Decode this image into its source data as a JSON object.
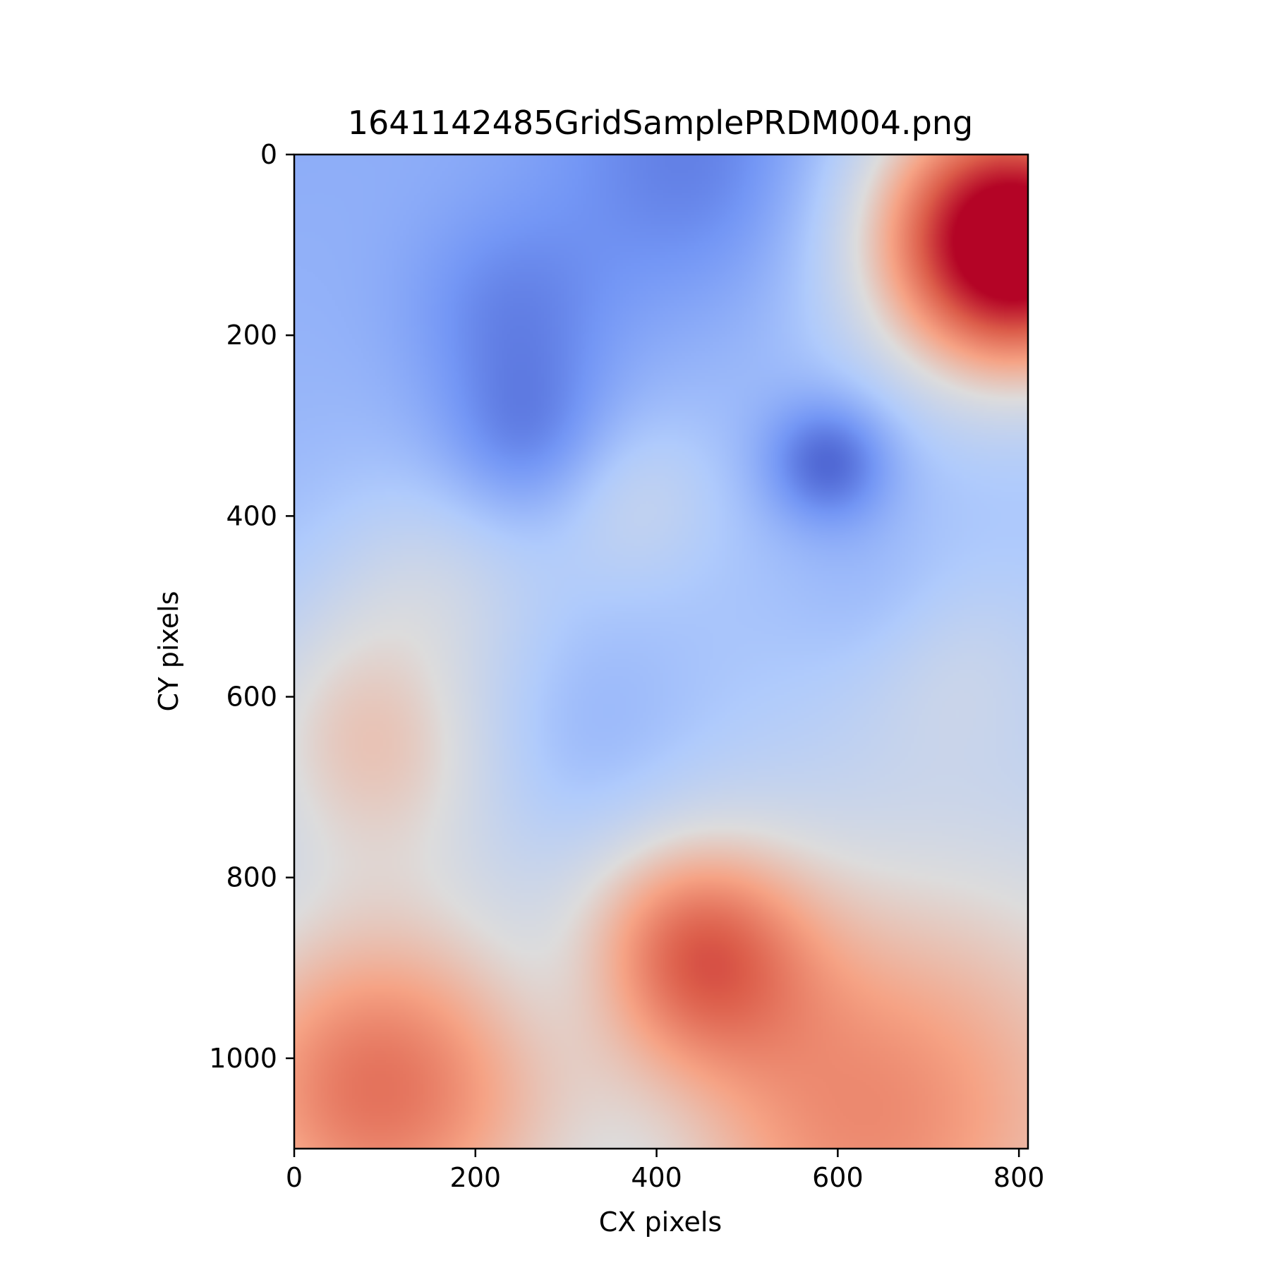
{
  "chart_data": {
    "type": "heatmap",
    "title": "1641142485GridSamplePRDM004.png",
    "xlabel": "CX pixels",
    "ylabel": "CY pixels",
    "xlim": [
      0,
      810
    ],
    "ylim": [
      1100,
      0
    ],
    "xticks": [
      0,
      200,
      400,
      600,
      800
    ],
    "yticks": [
      0,
      200,
      400,
      600,
      800,
      1000
    ],
    "colormap": "coolwarm",
    "colormap_stops": [
      "#3b4cc0",
      "#7396f5",
      "#b0cbfc",
      "#dddcdc",
      "#f6a385",
      "#dc5d4a",
      "#b40426"
    ],
    "value_range": [
      0,
      1
    ],
    "base_value": 0.24,
    "hotspots": [
      {
        "cx": 800,
        "cy": 100,
        "value": 1.0,
        "spread": 100
      },
      {
        "cx": 90,
        "cy": 1030,
        "value": 0.68,
        "spread": 140
      },
      {
        "cx": 440,
        "cy": 880,
        "value": 0.62,
        "spread": 90
      },
      {
        "cx": 90,
        "cy": 640,
        "value": 0.5,
        "spread": 110
      },
      {
        "cx": 600,
        "cy": 1080,
        "value": 0.45,
        "spread": 160
      },
      {
        "cx": 720,
        "cy": 1000,
        "value": 0.42,
        "spread": 220
      },
      {
        "cx": 370,
        "cy": 380,
        "value": 0.36,
        "spread": 70
      },
      {
        "cx": 160,
        "cy": 460,
        "value": 0.34,
        "spread": 90
      },
      {
        "cx": 720,
        "cy": 560,
        "value": 0.33,
        "spread": 80
      },
      {
        "cx": 700,
        "cy": 50,
        "value": 0.4,
        "spread": 130
      },
      {
        "cx": 590,
        "cy": 340,
        "value": 0.0,
        "spread": 50
      },
      {
        "cx": 260,
        "cy": 320,
        "value": 0.08,
        "spread": 70
      },
      {
        "cx": 460,
        "cy": 10,
        "value": 0.08,
        "spread": 120
      },
      {
        "cx": 240,
        "cy": 175,
        "value": 0.12,
        "spread": 80
      },
      {
        "cx": 310,
        "cy": 650,
        "value": 0.17,
        "spread": 90
      },
      {
        "cx": 320,
        "cy": 920,
        "value": 0.18,
        "spread": 70
      },
      {
        "cx": 650,
        "cy": 500,
        "value": 0.18,
        "spread": 70
      },
      {
        "cx": 400,
        "cy": 1090,
        "value": 0.2,
        "spread": 80
      },
      {
        "cx": 160,
        "cy": 580,
        "value": 0.22,
        "spread": 60
      }
    ]
  }
}
